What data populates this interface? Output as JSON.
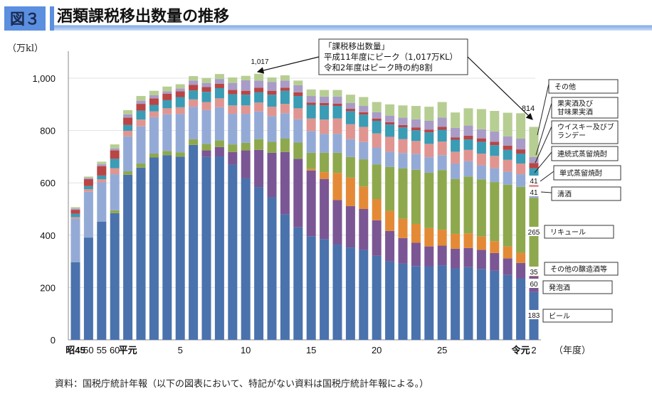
{
  "header": {
    "figure_label": "図３",
    "title": "酒類課税移出数量の推移"
  },
  "footer": {
    "source": "資料：国税庁統計年報（以下の図表において、特記がない資料は国税庁統計年報による。）"
  },
  "chart_data": {
    "type": "bar",
    "stacked": true,
    "title": "酒類課税移出数量の推移",
    "ylabel": "（万kl）",
    "xlabel": "（年度）",
    "ylim": [
      0,
      1000
    ],
    "yticks": [
      0,
      200,
      400,
      600,
      800,
      1000
    ],
    "ytick_labels": [
      "0",
      "200",
      "400",
      "600",
      "800",
      "1,000"
    ],
    "grid": true,
    "categories": [
      "昭45",
      "昭50",
      "昭55",
      "昭60",
      "平元",
      "平2",
      "平3",
      "平4",
      "平5",
      "平6",
      "平7",
      "平8",
      "平9",
      "平10",
      "平11",
      "平12",
      "平13",
      "平14",
      "平15",
      "平16",
      "平17",
      "平18",
      "平19",
      "平20",
      "平21",
      "平22",
      "平23",
      "平24",
      "平25",
      "平26",
      "平27",
      "平28",
      "平29",
      "平30",
      "令元",
      "令2"
    ],
    "xtick_labels": [
      "昭45",
      "50",
      "55",
      "60",
      "平元",
      "",
      "",
      "",
      "5",
      "",
      "",
      "",
      "",
      "10",
      "",
      "",
      "",
      "",
      "15",
      "",
      "",
      "",
      "",
      "20",
      "",
      "",
      "",
      "",
      "25",
      "",
      "",
      "",
      "",
      "",
      "令元",
      "2"
    ],
    "series": [
      {
        "name": "ビール",
        "color": "#4a72ad",
        "values": [
          297,
          391,
          452,
          484,
          631,
          658,
          697,
          706,
          700,
          745,
          699,
          701,
          670,
          617,
          584,
          545,
          480,
          430,
          396,
          385,
          364,
          353,
          344,
          321,
          300,
          291,
          282,
          280,
          285,
          273,
          278,
          271,
          264,
          248,
          235,
          183
        ]
      },
      {
        "name": "発泡酒",
        "color": "#7b5694",
        "values": [
          0,
          0,
          0,
          0,
          0,
          0,
          0,
          0,
          0,
          0,
          25,
          36,
          48,
          107,
          142,
          170,
          238,
          262,
          251,
          230,
          170,
          158,
          156,
          136,
          116,
          98,
          89,
          77,
          75,
          75,
          73,
          73,
          68,
          63,
          59,
          60
        ]
      },
      {
        "name": "その他の醸造酒等",
        "color": "#e48a36",
        "values": [
          0,
          0,
          0,
          0,
          0,
          0,
          0,
          0,
          0,
          0,
          0,
          0,
          0,
          0,
          0,
          0,
          0,
          0,
          6,
          26,
          104,
          109,
          86,
          81,
          77,
          74,
          72,
          70,
          61,
          57,
          56,
          51,
          45,
          46,
          39,
          35
        ]
      },
      {
        "name": "リキュール",
        "color": "#8ea94d",
        "values": [
          0,
          0,
          0,
          11,
          13,
          16,
          15,
          16,
          17,
          22,
          25,
          25,
          29,
          29,
          41,
          42,
          51,
          62,
          62,
          74,
          77,
          79,
          104,
          132,
          168,
          192,
          207,
          212,
          228,
          210,
          217,
          218,
          226,
          236,
          252,
          265
        ]
      },
      {
        "name": "清酒",
        "color": "#94aad6",
        "values": [
          166,
          175,
          150,
          138,
          134,
          142,
          139,
          140,
          146,
          124,
          129,
          127,
          117,
          111,
          106,
          98,
          97,
          89,
          83,
          72,
          72,
          68,
          66,
          65,
          58,
          59,
          61,
          59,
          57,
          59,
          59,
          54,
          53,
          50,
          48,
          41
        ]
      },
      {
        "name": "単式蒸留焼酎",
        "color": "#e09591",
        "values": [
          6,
          10,
          12,
          23,
          21,
          26,
          22,
          23,
          26,
          28,
          31,
          34,
          32,
          32,
          34,
          36,
          36,
          42,
          48,
          55,
          59,
          57,
          58,
          54,
          57,
          53,
          49,
          51,
          52,
          45,
          43,
          45,
          47,
          45,
          41,
          41
        ]
      },
      {
        "name": "連続式蒸留焼酎",
        "color": "#3a9cb5",
        "values": [
          13,
          12,
          14,
          36,
          22,
          34,
          25,
          31,
          39,
          34,
          39,
          39,
          43,
          41,
          39,
          46,
          50,
          47,
          52,
          54,
          48,
          50,
          47,
          48,
          47,
          45,
          41,
          44,
          45,
          46,
          40,
          45,
          41,
          38,
          38,
          31
        ]
      },
      {
        "name": "ウイスキー及びブランデー",
        "color": "#b94545",
        "values": [
          15,
          26,
          36,
          32,
          28,
          26,
          25,
          25,
          22,
          22,
          18,
          17,
          16,
          15,
          18,
          15,
          12,
          14,
          9,
          9,
          9,
          9,
          9,
          9,
          9,
          9,
          11,
          10,
          11,
          9,
          14,
          13,
          13,
          16,
          16,
          20
        ]
      },
      {
        "name": "果実酒及び甘味果実酒",
        "color": "#a99cc7",
        "values": [
          5,
          5,
          7,
          7,
          13,
          12,
          12,
          9,
          11,
          16,
          16,
          18,
          27,
          40,
          27,
          34,
          27,
          27,
          25,
          25,
          27,
          22,
          24,
          24,
          25,
          28,
          31,
          34,
          36,
          36,
          39,
          35,
          39,
          36,
          41,
          23
        ]
      },
      {
        "name": "その他",
        "color": "#b7ce93",
        "values": [
          5,
          5,
          10,
          16,
          16,
          18,
          17,
          18,
          16,
          17,
          19,
          19,
          21,
          17,
          26,
          17,
          20,
          18,
          25,
          25,
          25,
          32,
          34,
          39,
          43,
          47,
          51,
          54,
          59,
          59,
          66,
          77,
          79,
          90,
          97,
          115
        ]
      }
    ],
    "legend_labels": [
      "その他",
      "果実酒及び\n甘味果実酒",
      "ウイスキー及びブ\nランデー",
      "連続式蒸留焼酎",
      "単式蒸留焼酎",
      "清酒",
      "リキュール",
      "その他の醸造酒等",
      "発泡酒",
      "ビール"
    ],
    "data_labels": {
      "peak": "1,017",
      "latest_total": "814",
      "latest": {
        "ビール": "183",
        "発泡酒": "60",
        "その他の醸造酒等": "35",
        "リキュール": "265",
        "清酒": "41",
        "単式蒸留焼酎": "41"
      }
    },
    "annotation": {
      "lines": [
        "「課税移出数量」",
        "平成11年度にピーク（1,017万KL）",
        "令和2年度はピーク時の約8割"
      ]
    }
  }
}
